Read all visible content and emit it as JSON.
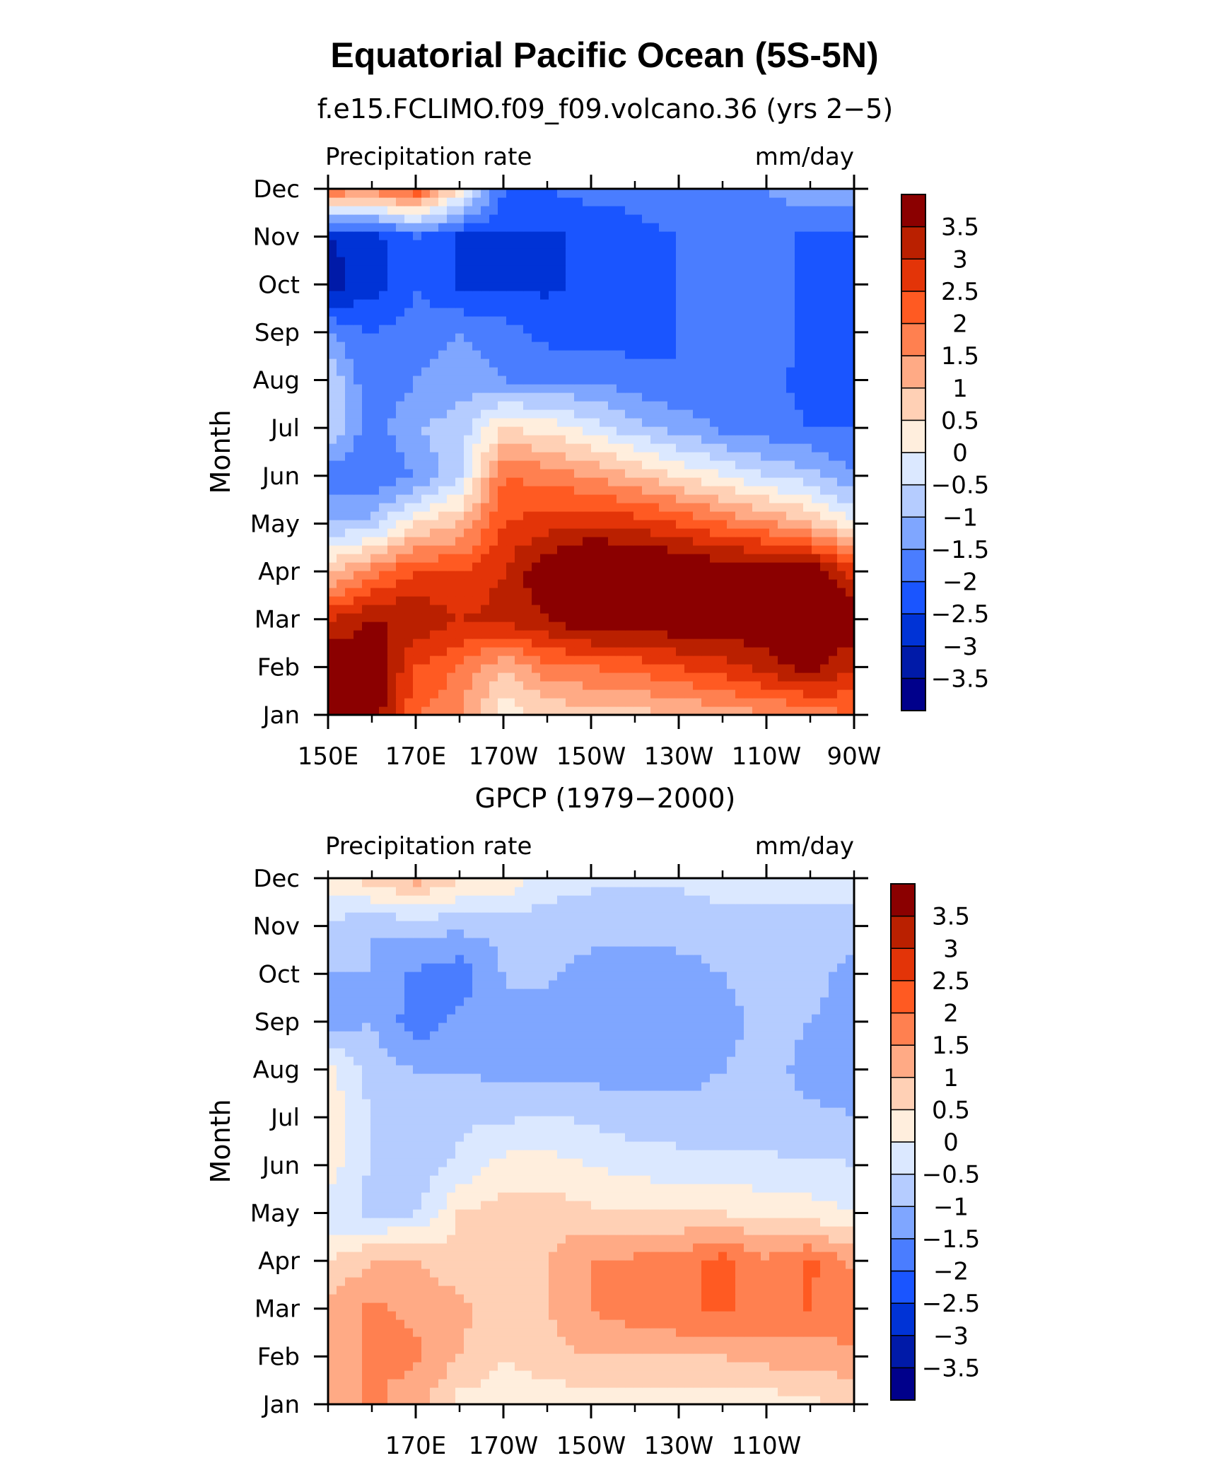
{
  "figure": {
    "title": "Equatorial Pacific Ocean (5S-5N)",
    "contour_levels": [
      -3.5,
      -3,
      -2.5,
      -2,
      -1.5,
      -1,
      -0.5,
      0,
      0.5,
      1,
      1.5,
      2,
      2.5,
      3,
      3.5
    ],
    "colorbar_labels": [
      "3.5",
      "3",
      "2.5",
      "2",
      "1.5",
      "1",
      "0.5",
      "0",
      "−0.5",
      "−1",
      "−1.5",
      "−2",
      "−2.5",
      "−3",
      "−3.5"
    ],
    "colorbar_colors": [
      "#00008b",
      "#001aa8",
      "#0033d6",
      "#1a55ff",
      "#4a7dff",
      "#7fa6ff",
      "#b5ccff",
      "#dbe8ff",
      "#ffeedd",
      "#ffd0b5",
      "#ffaa85",
      "#ff8050",
      "#ff5a22",
      "#e33408",
      "#ba2000",
      "#8b0000"
    ]
  },
  "chart_data": [
    {
      "type": "heatmap",
      "title": "f.e15.FCLIMO.f09_f09.volcano.36 (yrs 2−5)",
      "left_label": "Precipitation rate",
      "right_label": "mm/day",
      "ylabel": "Month",
      "xlabel": "",
      "x_ticklabels": [
        "150E",
        "170E",
        "170W",
        "150W",
        "130W",
        "110W",
        "90W"
      ],
      "x_values_deg_east": [
        150,
        170,
        190,
        210,
        230,
        250,
        270
      ],
      "y_ticklabels": [
        "Jan",
        "Feb",
        "Mar",
        "Apr",
        "May",
        "Jun",
        "Jul",
        "Aug",
        "Sep",
        "Oct",
        "Nov",
        "Dec"
      ],
      "units": "mm/day",
      "xlim": [
        150,
        270
      ],
      "ylim": [
        "Jan",
        "Dec"
      ],
      "grid": [
        [
          4.2,
          4.0,
          2.0,
          1.5,
          0.2,
          0.6,
          0.8,
          0.8,
          1.0,
          1.2,
          1.4,
          1.6,
          2.0
        ],
        [
          4.0,
          4.0,
          2.5,
          2.0,
          1.0,
          1.8,
          2.0,
          2.2,
          2.5,
          2.8,
          3.2,
          3.8,
          3.0
        ],
        [
          3.0,
          3.5,
          3.5,
          3.0,
          3.2,
          3.5,
          4.0,
          4.0,
          4.0,
          4.0,
          4.0,
          4.0,
          4.0
        ],
        [
          0.8,
          1.8,
          2.5,
          2.5,
          3.0,
          4.0,
          4.5,
          4.5,
          4.2,
          4.0,
          4.0,
          4.0,
          2.8
        ],
        [
          -1.0,
          -0.8,
          0.5,
          1.0,
          2.5,
          2.8,
          3.0,
          2.8,
          2.5,
          2.0,
          1.6,
          1.0,
          0.0
        ],
        [
          -1.8,
          -2.0,
          -1.5,
          -0.5,
          2.0,
          1.8,
          1.5,
          1.0,
          0.5,
          0.0,
          -0.5,
          -0.8,
          -1.5
        ],
        [
          -0.6,
          -1.8,
          -1.0,
          -0.8,
          0.5,
          0.3,
          -0.2,
          -0.8,
          -1.2,
          -1.6,
          -1.8,
          -2.0,
          -2.0
        ],
        [
          -0.5,
          -2.0,
          -1.5,
          -1.2,
          -1.5,
          -1.5,
          -1.6,
          -1.8,
          -2.0,
          -1.8,
          -1.8,
          -2.2,
          -2.2
        ],
        [
          -1.5,
          -2.0,
          -1.8,
          -1.5,
          -1.8,
          -2.2,
          -2.2,
          -2.2,
          -2.0,
          -1.8,
          -1.6,
          -2.2,
          -2.2
        ],
        [
          -3.2,
          -2.8,
          -2.0,
          -2.6,
          -2.6,
          -2.6,
          -2.4,
          -2.2,
          -2.0,
          -1.8,
          -1.6,
          -2.2,
          -2.2
        ],
        [
          -3.0,
          -2.8,
          -2.0,
          -2.6,
          -2.6,
          -2.6,
          -2.4,
          -2.2,
          -2.0,
          -1.8,
          -1.6,
          -2.2,
          -2.2
        ],
        [
          2.0,
          1.8,
          2.5,
          0.5,
          -2.0,
          -2.0,
          -1.8,
          -1.8,
          -1.6,
          -1.5,
          -1.5,
          -1.2,
          -1.0
        ]
      ]
    },
    {
      "type": "heatmap",
      "title": "GPCP (1979−2000)",
      "left_label": "Precipitation rate",
      "right_label": "mm/day",
      "ylabel": "Month",
      "xlabel": "",
      "x_ticklabels": [
        "170E",
        "170W",
        "150W",
        "130W",
        "110W"
      ],
      "x_values_deg_east": [
        170,
        190,
        210,
        230,
        250
      ],
      "y_ticklabels": [
        "Jan",
        "Feb",
        "Mar",
        "Apr",
        "May",
        "Jun",
        "Jul",
        "Aug",
        "Sep",
        "Oct",
        "Nov",
        "Dec"
      ],
      "units": "mm/day",
      "xlim": [
        150,
        270
      ],
      "ylim": [
        "Jan",
        "Dec"
      ],
      "grid": [
        [
          1.2,
          1.6,
          1.2,
          0.3,
          0.2,
          0.2,
          0.2,
          0.2,
          0.2,
          0.2,
          0.2,
          0.4,
          0.6
        ],
        [
          1.0,
          1.6,
          1.6,
          1.0,
          0.5,
          0.8,
          1.0,
          1.0,
          1.0,
          1.0,
          1.2,
          1.2,
          1.4
        ],
        [
          1.2,
          1.6,
          1.4,
          1.2,
          0.5,
          1.0,
          1.5,
          1.8,
          2.0,
          2.0,
          2.0,
          2.0,
          1.8
        ],
        [
          0.5,
          1.0,
          1.0,
          0.6,
          0.6,
          1.0,
          1.5,
          1.6,
          1.8,
          2.2,
          1.6,
          2.1,
          1.4
        ],
        [
          -0.3,
          -0.6,
          -0.5,
          0.5,
          0.7,
          0.8,
          0.6,
          0.6,
          0.5,
          0.5,
          0.4,
          0.2,
          0.0
        ],
        [
          0.3,
          -0.6,
          -0.8,
          -0.4,
          0.2,
          0.2,
          0.0,
          -0.2,
          -0.3,
          -0.4,
          -0.4,
          -0.4,
          -0.5
        ],
        [
          0.4,
          -0.5,
          -0.8,
          -0.6,
          -0.6,
          -0.4,
          -0.6,
          -0.8,
          -0.8,
          -0.8,
          -0.8,
          -0.9,
          -1.0
        ],
        [
          0.2,
          -0.8,
          -1.0,
          -1.0,
          -1.2,
          -1.3,
          -1.2,
          -1.2,
          -1.2,
          -1.0,
          -0.8,
          -1.2,
          -1.2
        ],
        [
          -1.2,
          -1.0,
          -1.8,
          -1.4,
          -1.0,
          -1.2,
          -1.4,
          -1.4,
          -1.4,
          -1.2,
          -0.8,
          -1.0,
          -1.2
        ],
        [
          -1.0,
          -1.0,
          -1.6,
          -1.8,
          -1.0,
          -0.9,
          -1.2,
          -1.2,
          -1.2,
          -1.0,
          -0.8,
          -0.8,
          -1.2
        ],
        [
          -0.6,
          -1.0,
          -0.8,
          -0.9,
          -0.8,
          -0.8,
          -0.8,
          -0.8,
          -0.8,
          -0.7,
          -0.7,
          -0.7,
          -0.7
        ],
        [
          0.2,
          0.8,
          1.2,
          0.6,
          0.4,
          -0.2,
          -0.4,
          -0.4,
          -0.4,
          -0.3,
          -0.3,
          -0.3,
          -0.3
        ]
      ]
    }
  ]
}
